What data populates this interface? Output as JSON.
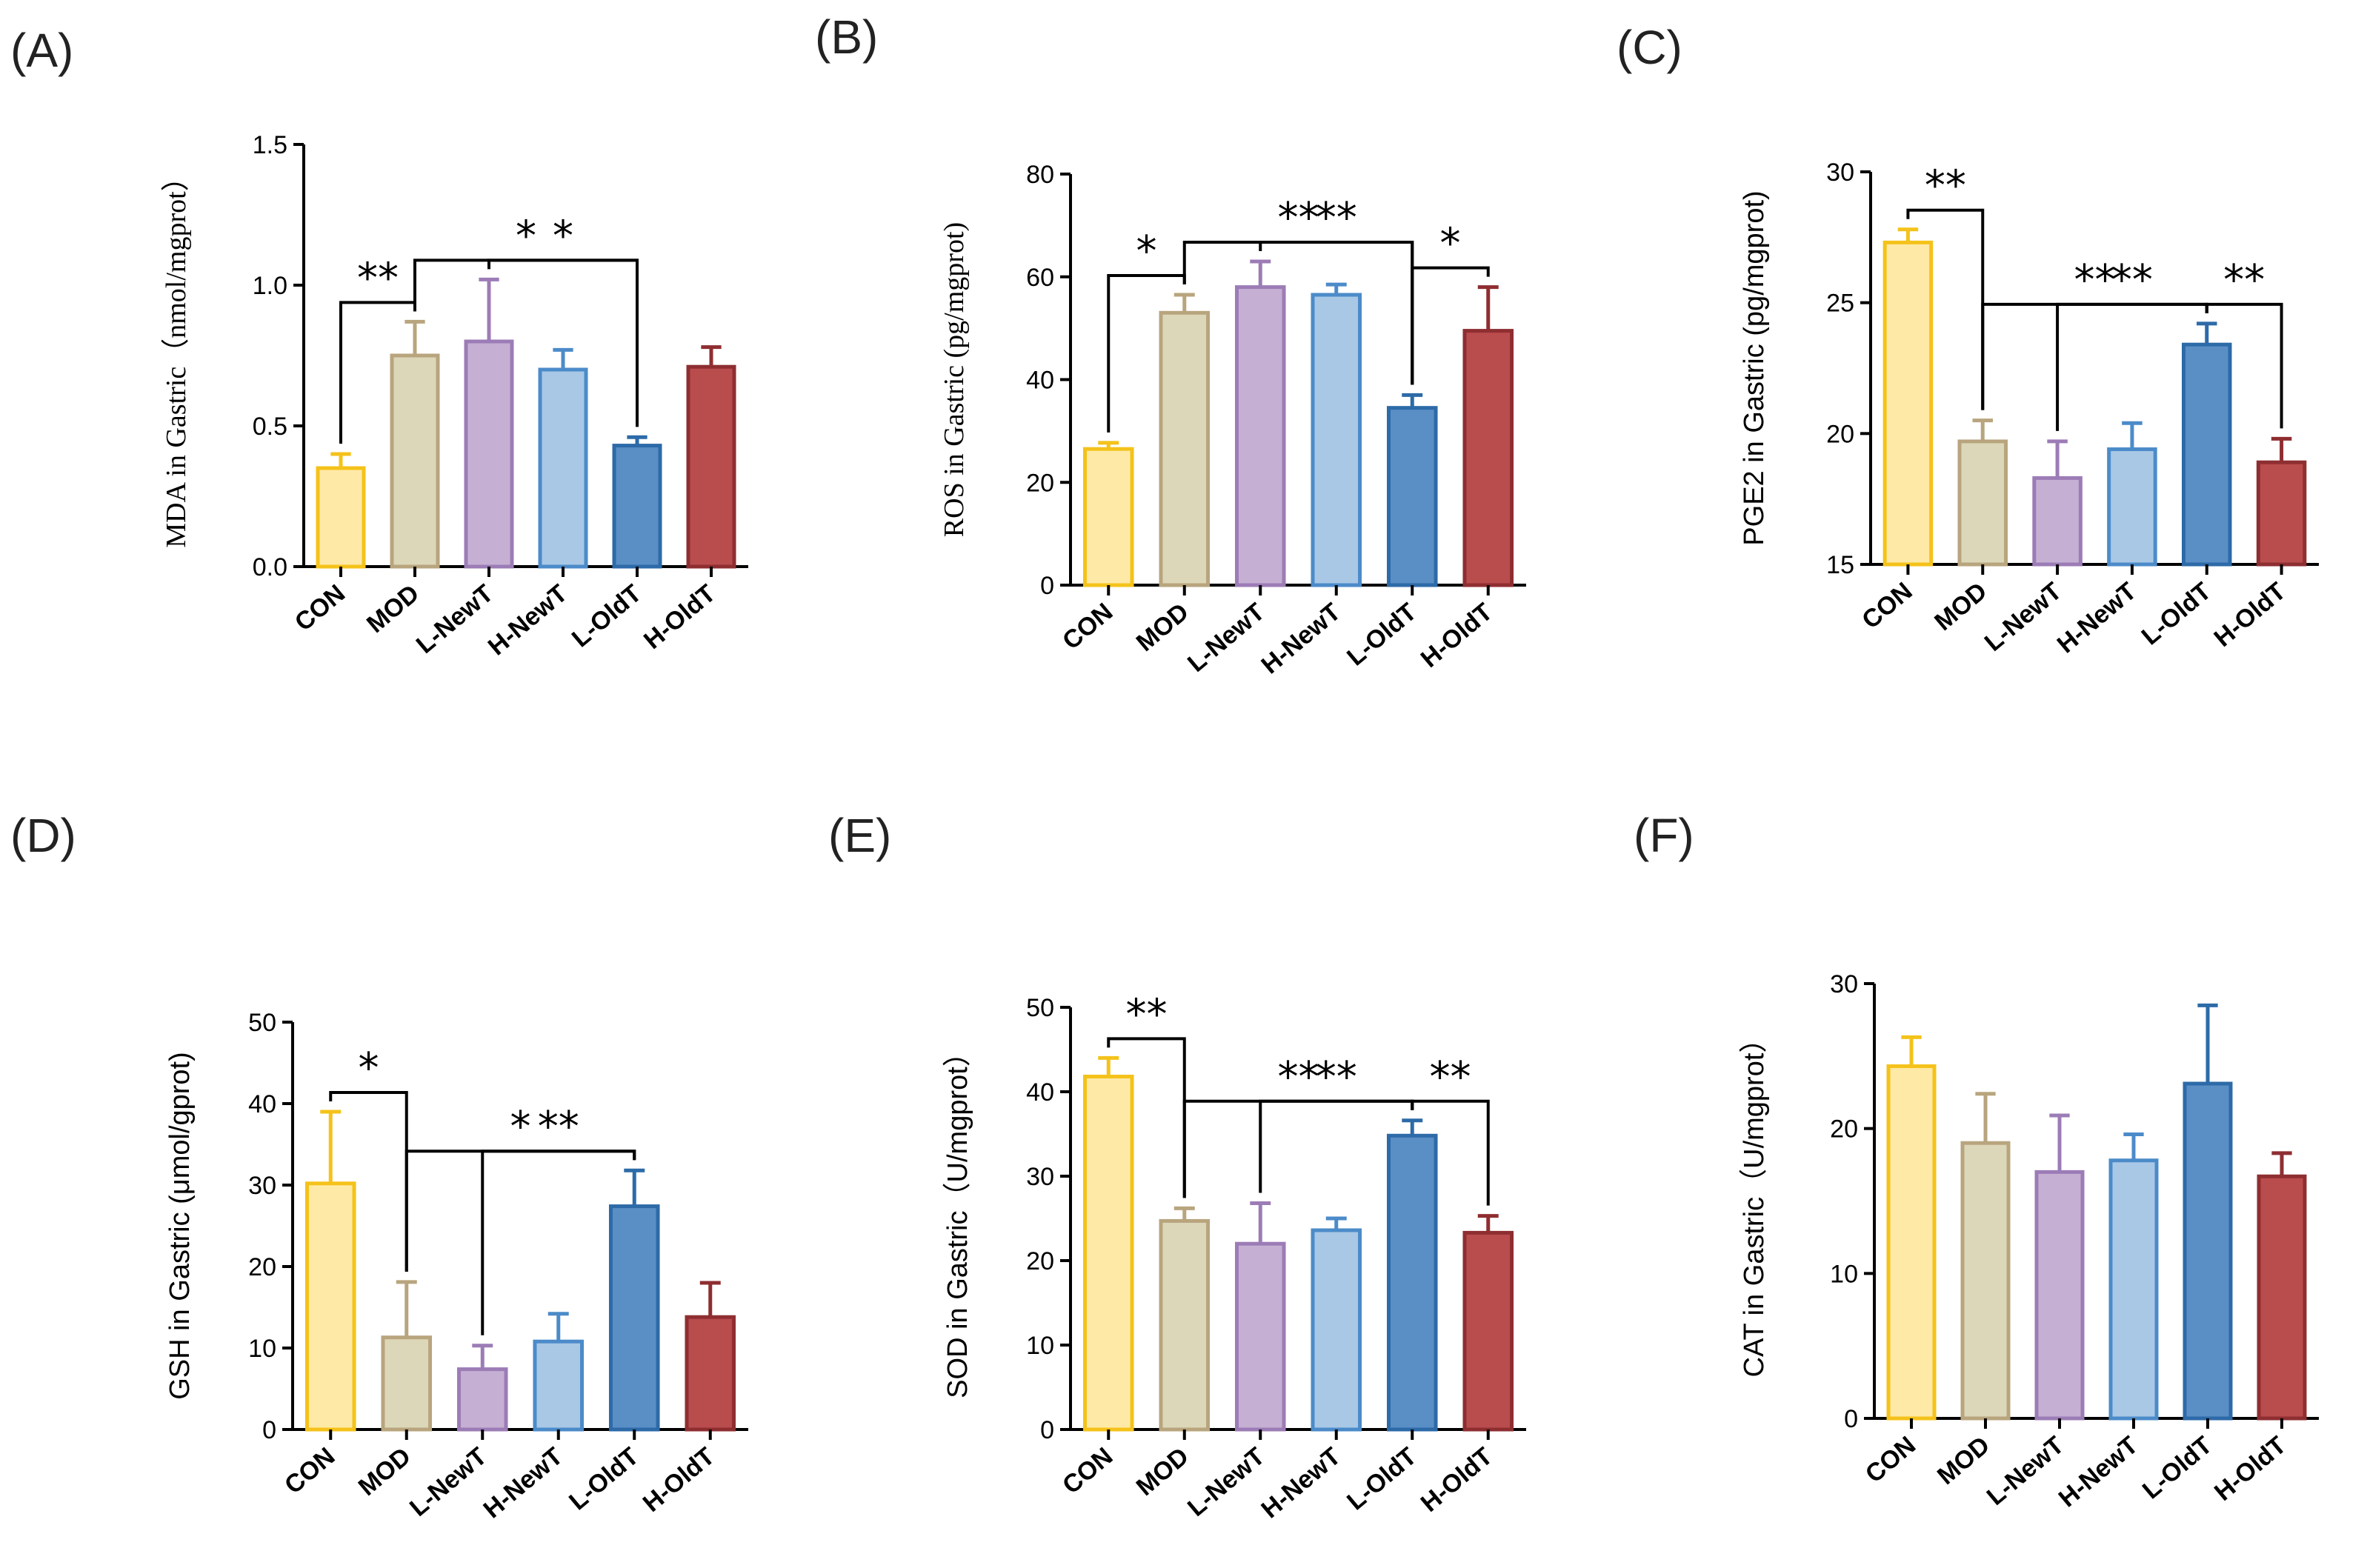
{
  "categories": [
    "CON",
    "MOD",
    "L-NewT",
    "H-NewT",
    "L-OldT",
    "H-OldT"
  ],
  "colors": {
    "fill": [
      "#FFE9A6",
      "#DDD7B9",
      "#C5B0D3",
      "#A9C8E6",
      "#5A8FC6",
      "#B94C4D"
    ],
    "stroke": [
      "#F4C21A",
      "#B8A57E",
      "#9C7CB6",
      "#4C8BC9",
      "#2D6AA8",
      "#8E2E31"
    ]
  },
  "chart_data": [
    {
      "id": "A",
      "label": "(A)",
      "type": "bar",
      "ylabel": "MDA in Gastric（nmol/mgprot）",
      "ylim": [
        0,
        1.5
      ],
      "yticks": [
        0,
        0.5,
        1.0,
        1.5
      ],
      "ytick_labels": [
        "0.0",
        "0.5",
        "1.0",
        "1.5"
      ],
      "categories": [
        "CON",
        "MOD",
        "L-NewT",
        "H-NewT",
        "L-OldT",
        "H-OldT"
      ],
      "values": [
        0.35,
        0.75,
        0.8,
        0.7,
        0.43,
        0.71
      ],
      "errors": [
        0.05,
        0.12,
        0.22,
        0.07,
        0.03,
        0.07
      ],
      "significance": [
        {
          "from": 0,
          "to": 1,
          "label": "**"
        },
        {
          "from": 1,
          "to": 4,
          "label": "*"
        },
        {
          "from": 2,
          "to": 4,
          "label": "*"
        }
      ]
    },
    {
      "id": "B",
      "label": "(B)",
      "type": "bar",
      "ylabel": "ROS in Gastric (pg/mgprot)",
      "ylim": [
        0,
        80
      ],
      "yticks": [
        0,
        20,
        40,
        60,
        80
      ],
      "ytick_labels": [
        "0",
        "20",
        "40",
        "60",
        "80"
      ],
      "categories": [
        "CON",
        "MOD",
        "L-NewT",
        "H-NewT",
        "L-OldT",
        "H-OldT"
      ],
      "values": [
        26.5,
        53,
        58,
        56.5,
        34.5,
        49.5
      ],
      "errors": [
        1.2,
        3.5,
        5,
        2,
        2.5,
        8.5
      ],
      "significance": [
        {
          "from": 0,
          "to": 1,
          "label": "*"
        },
        {
          "from": 1,
          "to": 4,
          "label": "**"
        },
        {
          "from": 2,
          "to": 4,
          "label": "**"
        },
        {
          "from": 4,
          "to": 5,
          "label": "*"
        }
      ]
    },
    {
      "id": "C",
      "label": "(C)",
      "type": "bar",
      "ylabel": "PGE2 in Gastric (pg/mgprot)",
      "ylim": [
        15,
        30
      ],
      "yticks": [
        15,
        20,
        25,
        30
      ],
      "ytick_labels": [
        "15",
        "20",
        "25",
        "30"
      ],
      "categories": [
        "CON",
        "MOD",
        "L-NewT",
        "H-NewT",
        "L-OldT",
        "H-OldT"
      ],
      "values": [
        27.3,
        19.7,
        18.3,
        19.4,
        23.4,
        18.9
      ],
      "errors": [
        0.5,
        0.8,
        1.4,
        1.0,
        0.8,
        0.9
      ],
      "significance": [
        {
          "from": 0,
          "to": 1,
          "label": "**"
        },
        {
          "from": 1,
          "to": 4,
          "label": "**"
        },
        {
          "from": 2,
          "to": 4,
          "label": "**"
        },
        {
          "from": 4,
          "to": 5,
          "label": "**"
        }
      ]
    },
    {
      "id": "D",
      "label": "(D)",
      "type": "bar",
      "ylabel": "GSH in Gastric (μmol/gprot)",
      "ylim": [
        0,
        50
      ],
      "yticks": [
        0,
        10,
        20,
        30,
        40,
        50
      ],
      "ytick_labels": [
        "0",
        "10",
        "20",
        "30",
        "40",
        "50"
      ],
      "categories": [
        "CON",
        "MOD",
        "L-NewT",
        "H-NewT",
        "L-OldT",
        "H-OldT"
      ],
      "values": [
        30.2,
        11.3,
        7.4,
        10.8,
        27.4,
        13.8
      ],
      "errors": [
        8.8,
        6.8,
        2.9,
        3.4,
        4.4,
        4.2
      ],
      "significance": [
        {
          "from": 0,
          "to": 1,
          "label": "*"
        },
        {
          "from": 1,
          "to": 4,
          "label": "*"
        },
        {
          "from": 2,
          "to": 4,
          "label": "**"
        }
      ]
    },
    {
      "id": "E",
      "label": "(E)",
      "type": "bar",
      "ylabel": "SOD in Gastric（U/mgprot）",
      "ylim": [
        0,
        50
      ],
      "yticks": [
        0,
        10,
        20,
        30,
        40,
        50
      ],
      "ytick_labels": [
        "0",
        "10",
        "20",
        "30",
        "40",
        "50"
      ],
      "categories": [
        "CON",
        "MOD",
        "L-NewT",
        "H-NewT",
        "L-OldT",
        "H-OldT"
      ],
      "values": [
        41.8,
        24.7,
        22.0,
        23.6,
        34.8,
        23.3
      ],
      "errors": [
        2.2,
        1.5,
        4.8,
        1.4,
        1.8,
        2.0
      ],
      "significance": [
        {
          "from": 0,
          "to": 1,
          "label": "**"
        },
        {
          "from": 1,
          "to": 4,
          "label": "**"
        },
        {
          "from": 2,
          "to": 4,
          "label": "**"
        },
        {
          "from": 4,
          "to": 5,
          "label": "**"
        }
      ]
    },
    {
      "id": "F",
      "label": "(F)",
      "type": "bar",
      "ylabel": "CAT in Gastric（U/mgprot）",
      "ylim": [
        0,
        30
      ],
      "yticks": [
        0,
        10,
        20,
        30
      ],
      "ytick_labels": [
        "0",
        "10",
        "20",
        "30"
      ],
      "categories": [
        "CON",
        "MOD",
        "L-NewT",
        "H-NewT",
        "L-OldT",
        "H-OldT"
      ],
      "values": [
        24.3,
        19.0,
        17.0,
        17.8,
        23.1,
        16.7
      ],
      "errors": [
        2.0,
        3.4,
        3.9,
        1.8,
        5.4,
        1.6
      ],
      "significance": []
    }
  ]
}
